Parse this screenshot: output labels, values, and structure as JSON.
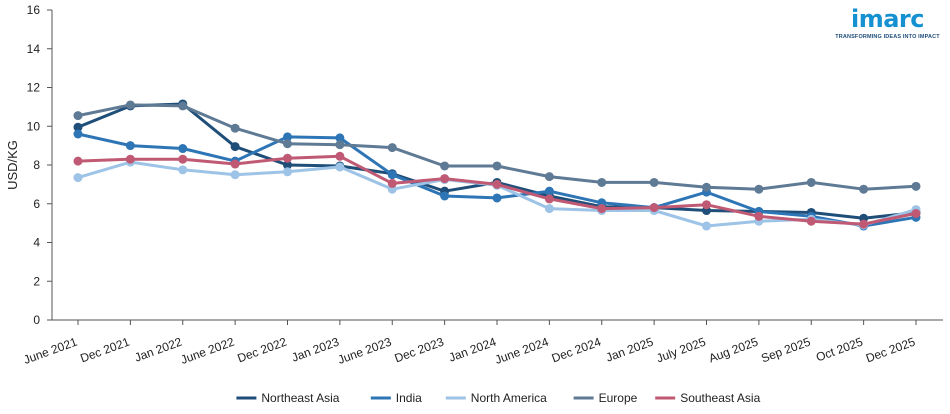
{
  "brand": {
    "name": "imarc",
    "tagline": "TRANSFORMING IDEAS INTO IMPACT",
    "color": "#1590d0"
  },
  "chart_data": {
    "type": "line",
    "title": "",
    "xlabel": "",
    "ylabel": "USD/KG",
    "ylim": [
      0,
      16
    ],
    "yticks": [
      0,
      2,
      4,
      6,
      8,
      10,
      12,
      14,
      16
    ],
    "grid": false,
    "legend_position": "bottom-center",
    "categories": [
      "June 2021",
      "Dec 2021",
      "Jan 2022",
      "June 2022",
      "Dec 2022",
      "Jan 2023",
      "June 2023",
      "Dec 2023",
      "Jan 2024",
      "June 2024",
      "Dec 2024",
      "Jan 2025",
      "July 2025",
      "Aug 2025",
      "Sep 2025",
      "Oct 2025",
      "Dec 2025"
    ],
    "series": [
      {
        "name": "Northeast Asia",
        "color": "#1f4e79",
        "values": [
          9.95,
          11.05,
          11.15,
          8.95,
          8.0,
          7.95,
          7.55,
          6.65,
          7.1,
          6.4,
          5.85,
          5.8,
          5.65,
          5.6,
          5.55,
          5.25,
          5.55
        ]
      },
      {
        "name": "India",
        "color": "#2e75b6",
        "values": [
          9.6,
          9.0,
          8.85,
          8.2,
          9.45,
          9.4,
          7.5,
          6.4,
          6.3,
          6.65,
          6.05,
          5.8,
          6.6,
          5.6,
          5.35,
          4.85,
          5.3
        ]
      },
      {
        "name": "North America",
        "color": "#9dc3e6",
        "values": [
          7.35,
          8.15,
          7.75,
          7.5,
          7.65,
          7.9,
          6.75,
          7.25,
          6.95,
          5.75,
          5.65,
          5.65,
          4.85,
          5.1,
          5.2,
          4.9,
          5.7
        ]
      },
      {
        "name": "Europe",
        "color": "#5f7a94",
        "values": [
          10.55,
          11.1,
          11.05,
          9.9,
          9.1,
          9.05,
          8.9,
          7.95,
          7.95,
          7.4,
          7.1,
          7.1,
          6.85,
          6.75,
          7.1,
          6.75,
          6.9
        ]
      },
      {
        "name": "Southeast Asia",
        "color": "#c05a74",
        "values": [
          8.2,
          8.3,
          8.3,
          8.05,
          8.35,
          8.45,
          7.05,
          7.3,
          7.0,
          6.25,
          5.75,
          5.8,
          5.95,
          5.35,
          5.1,
          4.95,
          5.5
        ]
      }
    ]
  }
}
